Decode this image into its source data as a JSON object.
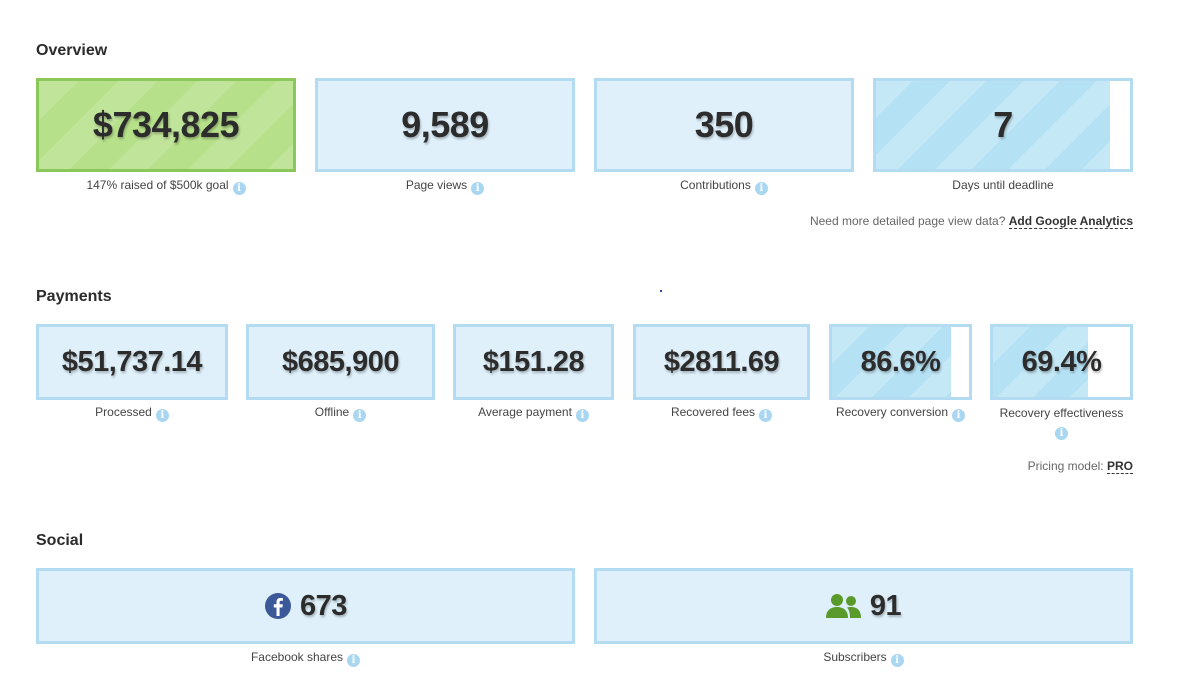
{
  "overview": {
    "title": "Overview",
    "cards": [
      {
        "value": "$734,825",
        "label": "147% raised of $500k goal"
      },
      {
        "value": "9,589",
        "label": "Page views"
      },
      {
        "value": "350",
        "label": "Contributions"
      },
      {
        "value": "7",
        "label": "Days until deadline"
      }
    ],
    "days_fill_percent": 92,
    "note_text": "Need more detailed page view data?",
    "note_link": "Add Google Analytics"
  },
  "payments": {
    "title": "Payments",
    "cards": [
      {
        "value": "$51,737.14",
        "label": "Processed"
      },
      {
        "value": "$685,900",
        "label": "Offline"
      },
      {
        "value": "$151.28",
        "label": "Average payment"
      },
      {
        "value": "$2811.69",
        "label": "Recovered fees"
      },
      {
        "value": "86.6%",
        "label": "Recovery conversion"
      },
      {
        "value": "69.4%",
        "label": "Recovery effectiveness"
      }
    ],
    "pricing_label": "Pricing model:",
    "pricing_value": "PRO"
  },
  "social": {
    "title": "Social",
    "cards": [
      {
        "value": "673",
        "label": "Facebook shares",
        "icon": "facebook-icon"
      },
      {
        "value": "91",
        "label": "Subscribers",
        "icon": "users-icon"
      }
    ]
  },
  "colors": {
    "card_bg": "#dff0fb",
    "card_border": "#b3dcf2",
    "goal_green": "#b6e08a",
    "facebook_blue": "#3b5998",
    "subscribers_green": "#5a9a2a"
  }
}
